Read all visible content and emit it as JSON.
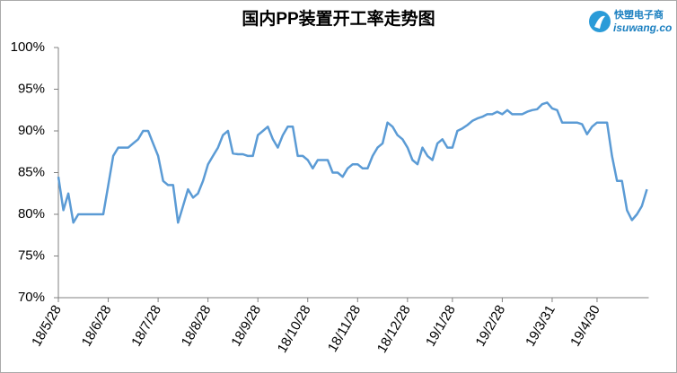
{
  "chart_data": {
    "type": "line",
    "title": "国内PP装置开工率走势图",
    "categories": [
      "18/5/28",
      null,
      null,
      null,
      null,
      null,
      null,
      null,
      null,
      null,
      "18/6/28",
      null,
      null,
      null,
      null,
      null,
      null,
      null,
      null,
      null,
      "18/7/28",
      null,
      null,
      null,
      null,
      null,
      null,
      null,
      null,
      null,
      "18/8/28",
      null,
      null,
      null,
      null,
      null,
      null,
      null,
      null,
      null,
      "18/9/28",
      null,
      null,
      null,
      null,
      null,
      null,
      null,
      null,
      null,
      "18/10/28",
      null,
      null,
      null,
      null,
      null,
      null,
      null,
      null,
      null,
      "18/11/28",
      null,
      null,
      null,
      null,
      null,
      null,
      null,
      null,
      null,
      "18/12/28",
      null,
      null,
      null,
      null,
      null,
      null,
      null,
      null,
      "19/1/28",
      null,
      null,
      null,
      null,
      null,
      null,
      null,
      null,
      null,
      "19/2/28",
      null,
      null,
      null,
      null,
      null,
      null,
      null,
      null,
      null,
      "19/3/31",
      null,
      null,
      null,
      null,
      null,
      null,
      null,
      null,
      "19/4/30",
      null,
      null,
      null,
      null,
      null,
      null,
      null,
      null,
      null,
      null
    ],
    "series": [
      {
        "color": "#5b9bd5",
        "values": [
          84.5,
          80.5,
          82.5,
          79,
          80,
          80,
          80,
          80,
          80,
          80,
          83.5,
          87,
          88,
          88,
          88,
          88.5,
          89,
          90,
          90,
          88.5,
          87,
          84,
          83.5,
          83.5,
          79,
          81,
          83,
          82,
          82.5,
          84,
          86,
          87,
          88,
          89.5,
          90,
          87.3,
          87.2,
          87.2,
          87,
          87,
          89.5,
          90,
          90.5,
          89,
          88,
          89.5,
          90.5,
          90.5,
          87,
          87,
          86.5,
          85.5,
          86.5,
          86.5,
          86.5,
          85,
          85,
          84.5,
          85.5,
          86,
          86,
          85.5,
          85.5,
          87,
          88,
          88.5,
          91,
          90.5,
          89.5,
          89,
          88,
          86.5,
          86,
          88,
          87,
          86.5,
          88.5,
          89,
          88,
          88,
          90,
          90.3,
          90.7,
          91.2,
          91.5,
          91.7,
          92,
          92,
          92.3,
          92,
          92.5,
          92,
          92,
          92,
          92.3,
          92.5,
          92.6,
          93.2,
          93.4,
          92.7,
          92.5,
          91,
          91,
          91,
          91,
          90.8,
          89.6,
          90.5,
          91,
          91,
          91,
          87,
          84,
          84,
          80.5,
          79.3,
          80,
          81,
          83
        ]
      }
    ],
    "ylim": [
      70,
      100
    ],
    "yticks": [
      {
        "value": 70,
        "label": "70%"
      },
      {
        "value": 75,
        "label": "75%"
      },
      {
        "value": 80,
        "label": "80%"
      },
      {
        "value": 85,
        "label": "85%"
      },
      {
        "value": 90,
        "label": "90%"
      },
      {
        "value": 95,
        "label": "95%"
      },
      {
        "value": 100,
        "label": "100%"
      }
    ],
    "grid": false
  },
  "logo": {
    "name": "快塑电子商",
    "domain": "isuwang.co"
  }
}
